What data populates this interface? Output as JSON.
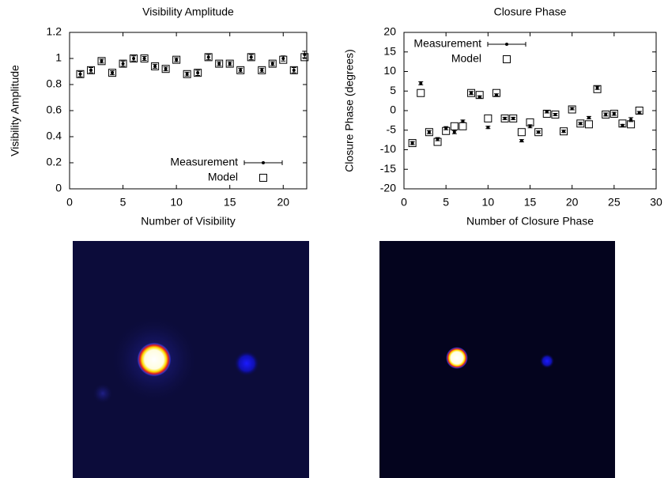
{
  "chart_data": [
    {
      "type": "scatter",
      "title": "Visibility Amplitude",
      "xlabel": "Number of Visibility",
      "ylabel": "Visibility Amplitude",
      "x": [
        1,
        2,
        3,
        4,
        5,
        6,
        7,
        8,
        9,
        10,
        11,
        12,
        13,
        14,
        15,
        16,
        17,
        18,
        19,
        20,
        21,
        22
      ],
      "series": [
        {
          "name": "Measurement",
          "color": "#000000",
          "values": [
            0.88,
            0.91,
            0.98,
            0.89,
            0.96,
            1.0,
            1.0,
            0.94,
            0.92,
            0.99,
            0.88,
            0.89,
            1.01,
            0.96,
            0.96,
            0.91,
            1.01,
            0.91,
            0.96,
            1.0,
            0.91,
            1.03
          ],
          "errors": [
            0.02,
            0.02,
            0.015,
            0.015,
            0.02,
            0.02,
            0.015,
            0.015,
            0.015,
            0.015,
            0.015,
            0.02,
            0.02,
            0.015,
            0.015,
            0.015,
            0.02,
            0.015,
            0.015,
            0.02,
            0.02,
            0.025
          ]
        },
        {
          "name": "Model",
          "color": "#000000",
          "values": [
            0.88,
            0.91,
            0.98,
            0.89,
            0.96,
            1.0,
            1.0,
            0.94,
            0.92,
            0.99,
            0.88,
            0.89,
            1.01,
            0.96,
            0.96,
            0.91,
            1.01,
            0.91,
            0.96,
            0.99,
            0.91,
            1.01
          ]
        }
      ],
      "xlim": [
        0,
        22.2
      ],
      "ylim": [
        0,
        1.2
      ],
      "xticks": [
        0,
        5,
        10,
        15,
        20
      ],
      "yticks": [
        0,
        0.2,
        0.4,
        0.6,
        0.8,
        1,
        1.2
      ],
      "legend": "lower right"
    },
    {
      "type": "scatter",
      "title": "Closure Phase",
      "xlabel": "Number of Closure Phase",
      "ylabel": "Closure Phase (degrees)",
      "x": [
        1,
        2,
        3,
        4,
        5,
        6,
        7,
        8,
        9,
        10,
        11,
        12,
        13,
        14,
        15,
        16,
        17,
        18,
        19,
        20,
        21,
        22,
        23,
        24,
        25,
        26,
        27,
        28
      ],
      "series": [
        {
          "name": "Measurement",
          "color": "#000000",
          "values": [
            -8.3,
            7,
            -5.5,
            -7.3,
            -4.5,
            -5.5,
            -2.7,
            4.5,
            3.5,
            -4.3,
            4,
            -2,
            -2,
            -7.7,
            -4,
            -5.5,
            -0.3,
            -1,
            -5.3,
            0.5,
            -3.3,
            -1.8,
            5.8,
            -1,
            -0.8,
            -3.8,
            -2.3,
            -0.5
          ],
          "errors": [
            0.4,
            0.4,
            0.4,
            0.4,
            0.4,
            0.4,
            0.3,
            0.4,
            0.3,
            0.3,
            0.3,
            0.3,
            0.3,
            0.3,
            0.4,
            0.3,
            0.3,
            0.3,
            0.3,
            0.3,
            0.3,
            0.3,
            0.4,
            0.4,
            0.4,
            0.3,
            0.5,
            0.3
          ]
        },
        {
          "name": "Model",
          "color": "#000000",
          "values": [
            -8.3,
            4.5,
            -5.5,
            -8,
            -5.2,
            -4,
            -4,
            4.5,
            4,
            -2,
            4.5,
            -2,
            -2,
            -5.5,
            -3,
            -5.5,
            -0.8,
            -1,
            -5.3,
            0.3,
            -3.3,
            -3.5,
            5.5,
            -1,
            -0.8,
            -3.3,
            -3.5,
            0
          ]
        }
      ],
      "xlim": [
        0,
        30
      ],
      "ylim": [
        -20,
        20
      ],
      "xticks": [
        0,
        5,
        10,
        15,
        20,
        25,
        30
      ],
      "yticks": [
        -20,
        -15,
        -10,
        -5,
        0,
        5,
        10,
        15,
        20
      ],
      "legend": "upper left"
    }
  ]
}
